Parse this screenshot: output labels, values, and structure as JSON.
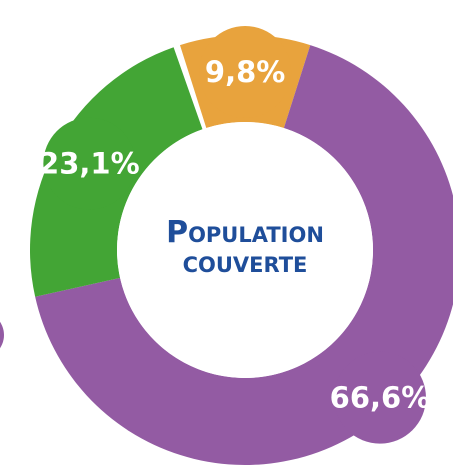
{
  "chart_data": {
    "type": "donut",
    "title": "POPULATION COUVERTE",
    "categories": [
      null,
      null,
      null
    ],
    "values": [
      9.8,
      66.6,
      23.1
    ],
    "value_labels": [
      "9,8%",
      "66,6%",
      "23,1%"
    ],
    "colors": [
      "#e8a33d",
      "#935ba3",
      "#43a535"
    ]
  }
}
